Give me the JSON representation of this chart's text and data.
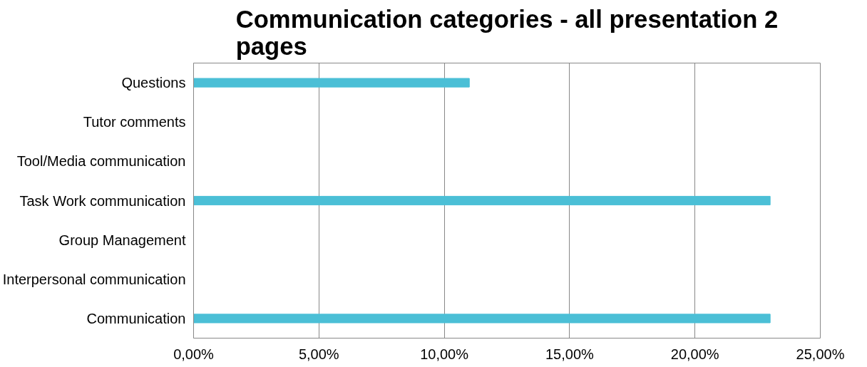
{
  "chart_data": {
    "type": "bar",
    "orientation": "horizontal",
    "title": "Communication categories - all presentation 2 pages",
    "categories": [
      "Questions",
      "Tutor comments",
      "Tool/Media communication",
      "Task Work communication",
      "Group Management",
      "Interpersonal communication",
      "Communication"
    ],
    "values": [
      11,
      0,
      0,
      23,
      0,
      0,
      23
    ],
    "color": "#4bbfd6",
    "xlim": [
      0,
      25
    ],
    "xticks": [
      {
        "value": 0,
        "label": "0,00%"
      },
      {
        "value": 5,
        "label": "5,00%"
      },
      {
        "value": 10,
        "label": "10,00%"
      },
      {
        "value": 15,
        "label": "15,00%"
      },
      {
        "value": 20,
        "label": "20,00%"
      },
      {
        "value": 25,
        "label": "25,00%"
      }
    ],
    "grid": "x"
  }
}
